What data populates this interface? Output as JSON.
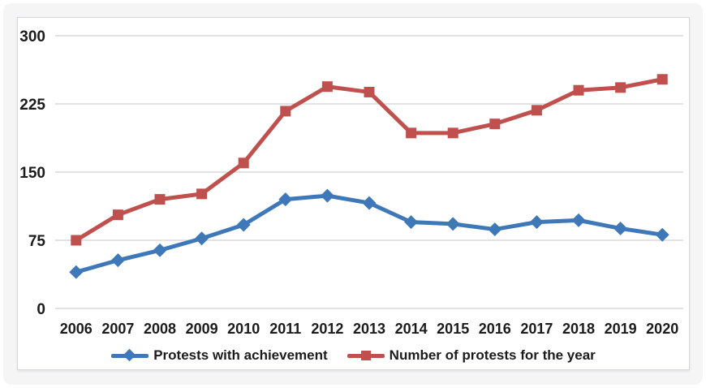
{
  "colors": {
    "page_bg": "#f5f5f6",
    "chart_bg": "#ffffff",
    "grid": "#d9d9d9",
    "text": "#1b1b1b",
    "series_blue": "#3e78b8",
    "series_red": "#c0504d"
  },
  "chart_data": {
    "type": "line",
    "categories": [
      "2006",
      "2007",
      "2008",
      "2009",
      "2010",
      "2011",
      "2012",
      "2013",
      "2014",
      "2015",
      "2016",
      "2017",
      "2018",
      "2019",
      "2020"
    ],
    "series": [
      {
        "name": "Protests with achievement",
        "color": "#3e78b8",
        "marker": "diamond",
        "values": [
          40,
          53,
          64,
          77,
          92,
          120,
          124,
          116,
          95,
          93,
          87,
          95,
          97,
          88,
          81
        ]
      },
      {
        "name": "Number of protests for the year",
        "color": "#c0504d",
        "marker": "square",
        "values": [
          75,
          103,
          120,
          126,
          160,
          217,
          244,
          238,
          193,
          193,
          203,
          218,
          240,
          243,
          252
        ]
      }
    ],
    "title": "",
    "xlabel": "",
    "ylabel": "",
    "ylim": [
      0,
      300
    ],
    "y_ticks": [
      0,
      75,
      150,
      225,
      300
    ],
    "grid": "horizontal",
    "legend_position": "bottom"
  }
}
